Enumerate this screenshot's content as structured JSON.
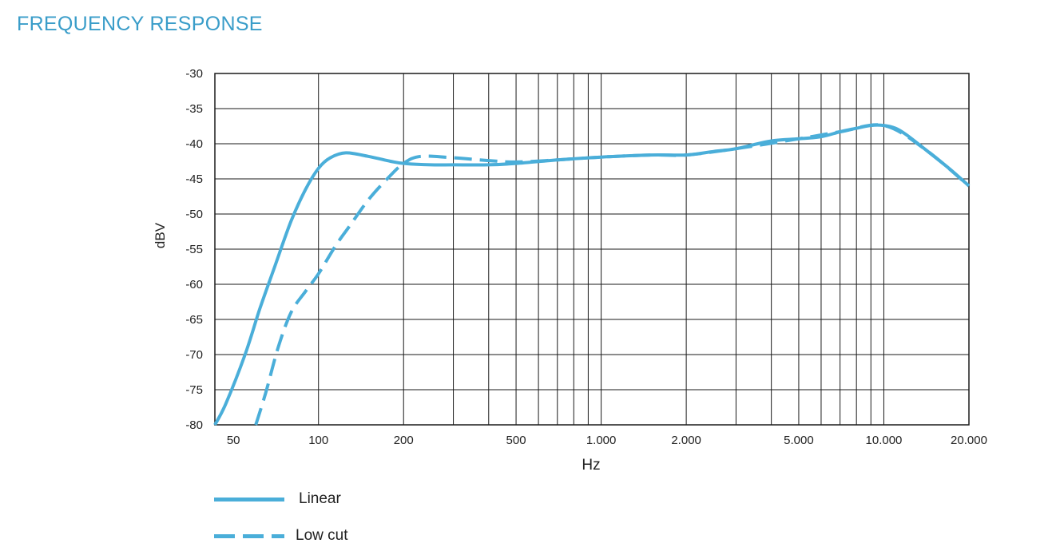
{
  "title": "FREQUENCY RESPONSE",
  "colors": {
    "title": "#3a9dc9",
    "series": "#4aaed9",
    "grid": "#1a1a1a",
    "text": "#222222"
  },
  "chart_data": {
    "type": "line",
    "xlabel": "Hz",
    "ylabel": "dBV",
    "x_scale": "log",
    "xlim": [
      43,
      20000
    ],
    "ylim": [
      -80,
      -30
    ],
    "grid": true,
    "legend_placement": "bottom-left",
    "y_ticks": [
      -30,
      -35,
      -40,
      -45,
      -50,
      -55,
      -60,
      -65,
      -70,
      -75,
      -80
    ],
    "x_tick_labels": [
      {
        "value": 50,
        "label": "50"
      },
      {
        "value": 100,
        "label": "100"
      },
      {
        "value": 200,
        "label": "200"
      },
      {
        "value": 500,
        "label": "500"
      },
      {
        "value": 1000,
        "label": "1.000"
      },
      {
        "value": 2000,
        "label": "2.000"
      },
      {
        "value": 5000,
        "label": "5.000"
      },
      {
        "value": 10000,
        "label": "10.000"
      },
      {
        "value": 20000,
        "label": "20.000"
      }
    ],
    "x_gridlines": [
      100,
      200,
      300,
      400,
      500,
      600,
      700,
      800,
      900,
      1000,
      2000,
      3000,
      4000,
      5000,
      6000,
      7000,
      8000,
      9000,
      10000
    ],
    "series": [
      {
        "name": "Linear",
        "style": "solid",
        "x": [
          43,
          47,
          55,
          62,
          70,
          80,
          90,
          100,
          110,
          125,
          150,
          180,
          200,
          250,
          300,
          400,
          500,
          700,
          1000,
          1500,
          2000,
          2500,
          3000,
          4000,
          5000,
          6000,
          7000,
          8000,
          9000,
          10000,
          11000,
          12000,
          14000,
          17000,
          20000
        ],
        "y": [
          -80,
          -77,
          -70,
          -63.5,
          -57.5,
          -51,
          -46.5,
          -43.5,
          -42,
          -41.3,
          -41.8,
          -42.5,
          -42.8,
          -43,
          -43,
          -43,
          -42.8,
          -42.3,
          -41.9,
          -41.6,
          -41.6,
          -41.1,
          -40.7,
          -39.6,
          -39.3,
          -39,
          -38.3,
          -37.8,
          -37.4,
          -37.4,
          -37.8,
          -38.7,
          -40.8,
          -43.5,
          -46
        ]
      },
      {
        "name": "Low cut",
        "style": "dashed",
        "x": [
          60,
          65,
          72,
          80,
          90,
          100,
          115,
          130,
          150,
          175,
          200,
          230,
          300,
          400,
          500,
          700,
          1000,
          1500,
          2000,
          3000,
          5000,
          7000,
          10000,
          14000,
          20000
        ],
        "y": [
          -80,
          -75.5,
          -69,
          -64,
          -61,
          -58.5,
          -54.5,
          -51.5,
          -48,
          -45,
          -42.8,
          -41.8,
          -42,
          -42.4,
          -42.6,
          -42.3,
          -41.9,
          -41.6,
          -41.6,
          -40.7,
          -39.3,
          -38.3,
          -37.4,
          -40.8,
          -46
        ]
      }
    ]
  }
}
